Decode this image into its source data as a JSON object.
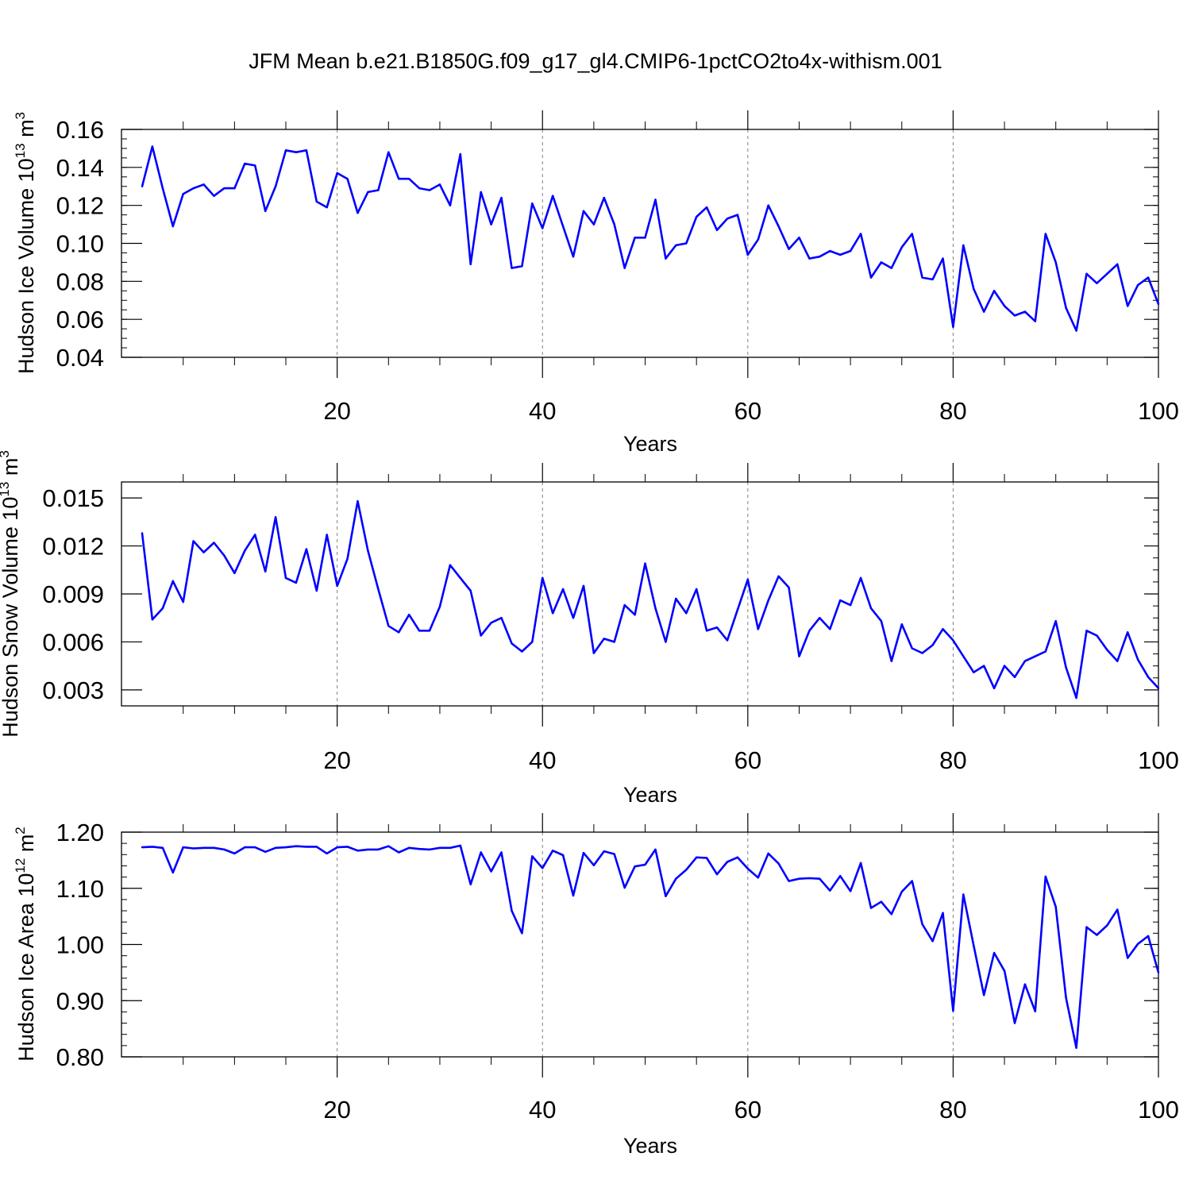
{
  "title": "JFM Mean b.e21.B1850G.f09_g17_gl4.CMIP6-1pctCO2to4x-withism.001",
  "colors": {
    "series": "#0000ff",
    "axis": "#000000",
    "grid": "#808080"
  },
  "chart_data": [
    {
      "type": "line",
      "name": "ice-volume",
      "ylabel_main": "Hudson Ice Volume 10",
      "ylabel_sup1": "13",
      "ylabel_unit": " m",
      "ylabel_sup2": "3",
      "xlabel": "Years",
      "xlim": [
        1,
        100
      ],
      "ylim": [
        0.04,
        0.16
      ],
      "xticks": [
        20,
        40,
        60,
        80,
        100
      ],
      "yticks": [
        0.04,
        0.06,
        0.08,
        0.1,
        0.12,
        0.14,
        0.16
      ],
      "ytick_labels": [
        "0.04",
        "0.06",
        "0.08",
        "0.10",
        "0.12",
        "0.14",
        "0.16"
      ],
      "yminor_step": 0.005,
      "grid_x": [
        20,
        40,
        60,
        80
      ],
      "x_start": 1,
      "values": [
        0.13,
        0.151,
        0.129,
        0.109,
        0.126,
        0.129,
        0.131,
        0.125,
        0.129,
        0.129,
        0.142,
        0.141,
        0.117,
        0.13,
        0.149,
        0.148,
        0.149,
        0.122,
        0.119,
        0.137,
        0.134,
        0.116,
        0.127,
        0.128,
        0.148,
        0.134,
        0.134,
        0.129,
        0.128,
        0.131,
        0.12,
        0.147,
        0.089,
        0.127,
        0.11,
        0.124,
        0.087,
        0.088,
        0.121,
        0.108,
        0.125,
        0.109,
        0.093,
        0.117,
        0.11,
        0.124,
        0.11,
        0.087,
        0.103,
        0.103,
        0.123,
        0.092,
        0.099,
        0.1,
        0.114,
        0.119,
        0.107,
        0.113,
        0.115,
        0.094,
        0.102,
        0.12,
        0.109,
        0.097,
        0.103,
        0.092,
        0.093,
        0.096,
        0.094,
        0.096,
        0.105,
        0.082,
        0.09,
        0.087,
        0.098,
        0.105,
        0.082,
        0.081,
        0.092,
        0.056,
        0.099,
        0.076,
        0.064,
        0.075,
        0.067,
        0.062,
        0.064,
        0.059,
        0.105,
        0.09,
        0.066,
        0.054,
        0.084,
        0.079,
        0.084,
        0.089,
        0.067,
        0.078,
        0.082,
        0.068
      ]
    },
    {
      "type": "line",
      "name": "snow-volume",
      "ylabel_main": "Hudson Snow Volume 10",
      "ylabel_sup1": "13",
      "ylabel_unit": " m",
      "ylabel_sup2": "3",
      "xlabel": "Years",
      "xlim": [
        1,
        100
      ],
      "ylim": [
        0.002,
        0.016
      ],
      "xticks": [
        20,
        40,
        60,
        80,
        100
      ],
      "yticks": [
        0.003,
        0.006,
        0.009,
        0.012,
        0.015
      ],
      "ytick_labels": [
        "0.003",
        "0.006",
        "0.009",
        "0.012",
        "0.015"
      ],
      "yminor_step": 0.0,
      "grid_x": [
        20,
        40,
        60,
        80
      ],
      "x_start": 1,
      "values": [
        0.0128,
        0.0074,
        0.0081,
        0.0098,
        0.0085,
        0.0123,
        0.0116,
        0.0122,
        0.0114,
        0.0103,
        0.0117,
        0.0127,
        0.0104,
        0.0138,
        0.01,
        0.0097,
        0.0118,
        0.0092,
        0.0127,
        0.0095,
        0.0112,
        0.0148,
        0.0117,
        0.0093,
        0.007,
        0.0066,
        0.0077,
        0.0067,
        0.0067,
        0.0082,
        0.0108,
        0.01,
        0.0092,
        0.0064,
        0.0072,
        0.0075,
        0.0059,
        0.0054,
        0.006,
        0.01,
        0.0078,
        0.0093,
        0.0075,
        0.0095,
        0.0053,
        0.0062,
        0.006,
        0.0083,
        0.0077,
        0.0109,
        0.0081,
        0.006,
        0.0087,
        0.0078,
        0.0093,
        0.0067,
        0.0069,
        0.0061,
        0.008,
        0.0099,
        0.0068,
        0.0086,
        0.0101,
        0.0094,
        0.0051,
        0.0067,
        0.0075,
        0.0068,
        0.0086,
        0.0083,
        0.01,
        0.0081,
        0.0073,
        0.0048,
        0.0071,
        0.0056,
        0.0053,
        0.0058,
        0.0068,
        0.0061,
        0.0051,
        0.0041,
        0.0045,
        0.0031,
        0.0045,
        0.0038,
        0.0048,
        0.0051,
        0.0054,
        0.0073,
        0.0044,
        0.0025,
        0.0067,
        0.0064,
        0.0055,
        0.0048,
        0.0066,
        0.0049,
        0.0038,
        0.0031
      ]
    },
    {
      "type": "line",
      "name": "ice-area",
      "ylabel_main": "Hudson Ice Area 10",
      "ylabel_sup1": "12",
      "ylabel_unit": " m",
      "ylabel_sup2": "2",
      "xlabel": "Years",
      "xlim": [
        1,
        100
      ],
      "ylim": [
        0.8,
        1.2
      ],
      "xticks": [
        20,
        40,
        60,
        80,
        100
      ],
      "yticks": [
        0.8,
        0.9,
        1.0,
        1.1,
        1.2
      ],
      "ytick_labels": [
        "0.80",
        "0.90",
        "1.00",
        "1.10",
        "1.20"
      ],
      "yminor_step": 0.02,
      "grid_x": [
        20,
        40,
        60,
        80
      ],
      "x_start": 1,
      "values": [
        1.173,
        1.174,
        1.172,
        1.128,
        1.173,
        1.171,
        1.172,
        1.172,
        1.169,
        1.162,
        1.173,
        1.173,
        1.165,
        1.172,
        1.173,
        1.175,
        1.174,
        1.174,
        1.162,
        1.173,
        1.174,
        1.167,
        1.169,
        1.169,
        1.175,
        1.164,
        1.172,
        1.17,
        1.169,
        1.172,
        1.172,
        1.176,
        1.107,
        1.164,
        1.13,
        1.164,
        1.06,
        1.02,
        1.157,
        1.136,
        1.167,
        1.159,
        1.087,
        1.163,
        1.141,
        1.166,
        1.161,
        1.101,
        1.139,
        1.142,
        1.169,
        1.086,
        1.117,
        1.133,
        1.155,
        1.154,
        1.125,
        1.147,
        1.155,
        1.135,
        1.119,
        1.162,
        1.144,
        1.113,
        1.117,
        1.118,
        1.117,
        1.096,
        1.122,
        1.095,
        1.145,
        1.065,
        1.076,
        1.054,
        1.094,
        1.113,
        1.036,
        1.006,
        1.056,
        0.882,
        1.089,
        0.998,
        0.91,
        0.985,
        0.953,
        0.86,
        0.929,
        0.881,
        1.121,
        1.067,
        0.905,
        0.816,
        1.031,
        1.017,
        1.034,
        1.062,
        0.976,
        1.001,
        1.015,
        0.95
      ]
    }
  ]
}
